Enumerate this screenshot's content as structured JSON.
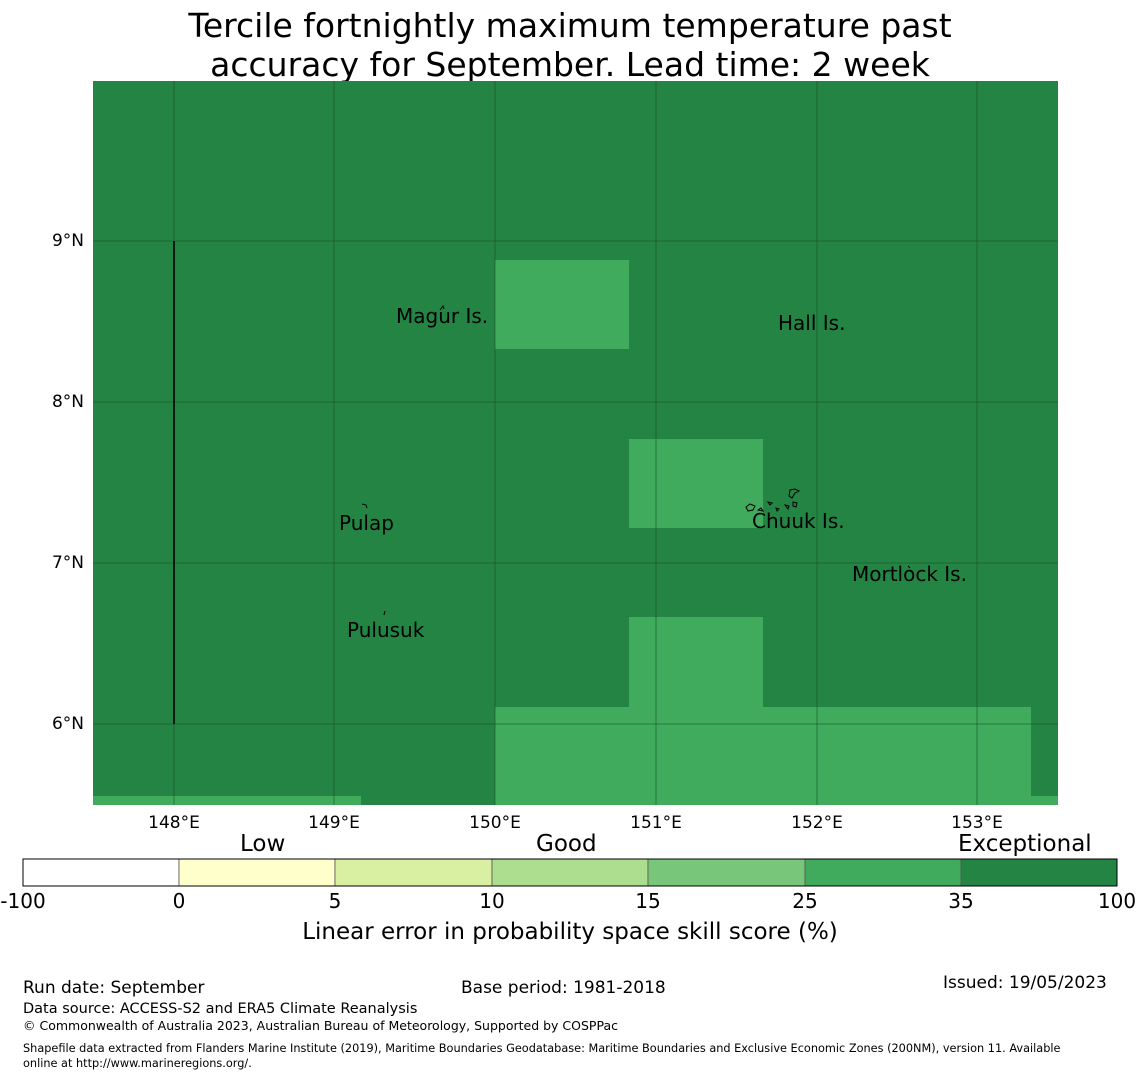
{
  "title": {
    "line1": "Tercile fortnightly maximum temperature past",
    "line2": "accuracy for September. Lead time: 2 week"
  },
  "map": {
    "latitude_labels": [
      "9°N",
      "8°N",
      "7°N",
      "6°N"
    ],
    "longitude_labels": [
      "148°E",
      "149°E",
      "150°E",
      "151°E",
      "152°E",
      "153°E"
    ],
    "places": [
      "Magur Is.",
      "Hall Is.",
      "Pulap",
      "Chuuk Is.",
      "Mortlock Is.",
      "Pulusuk"
    ],
    "colors": {
      "exceptional": "#238443",
      "good_high": "#41ab5d",
      "grid": "#1a4d2a",
      "border": "#000000"
    }
  },
  "colorbar": {
    "categories": [
      "Low",
      "Good",
      "Exceptional"
    ],
    "ticks": [
      "-100",
      "0",
      "5",
      "10",
      "15",
      "25",
      "35",
      "100"
    ],
    "colors": [
      "#ffffff",
      "#ffffcc",
      "#d9f0a3",
      "#addd8e",
      "#78c679",
      "#41ab5d",
      "#238443"
    ],
    "label": "Linear error in probability space skill score (%)"
  },
  "footer": {
    "run_date": "Run date: September",
    "base_period": "Base period: 1981-2018",
    "issued": "Issued: 19/05/2023",
    "data_source": "Data source: ACCESS-S2 and ERA5 Climate Reanalysis",
    "copyright": "© Commonwealth of Australia 2023, Australian Bureau of Meteorology, Supported by COSPPac",
    "shapefile_line1": "Shapefile data extracted from Flanders Marine Institute (2019), Maritime Boundaries Geodatabase: Maritime Boundaries and Exclusive Economic Zones (200NM), version 11. Available",
    "shapefile_line2": "online at http://www.marineregions.org/."
  }
}
